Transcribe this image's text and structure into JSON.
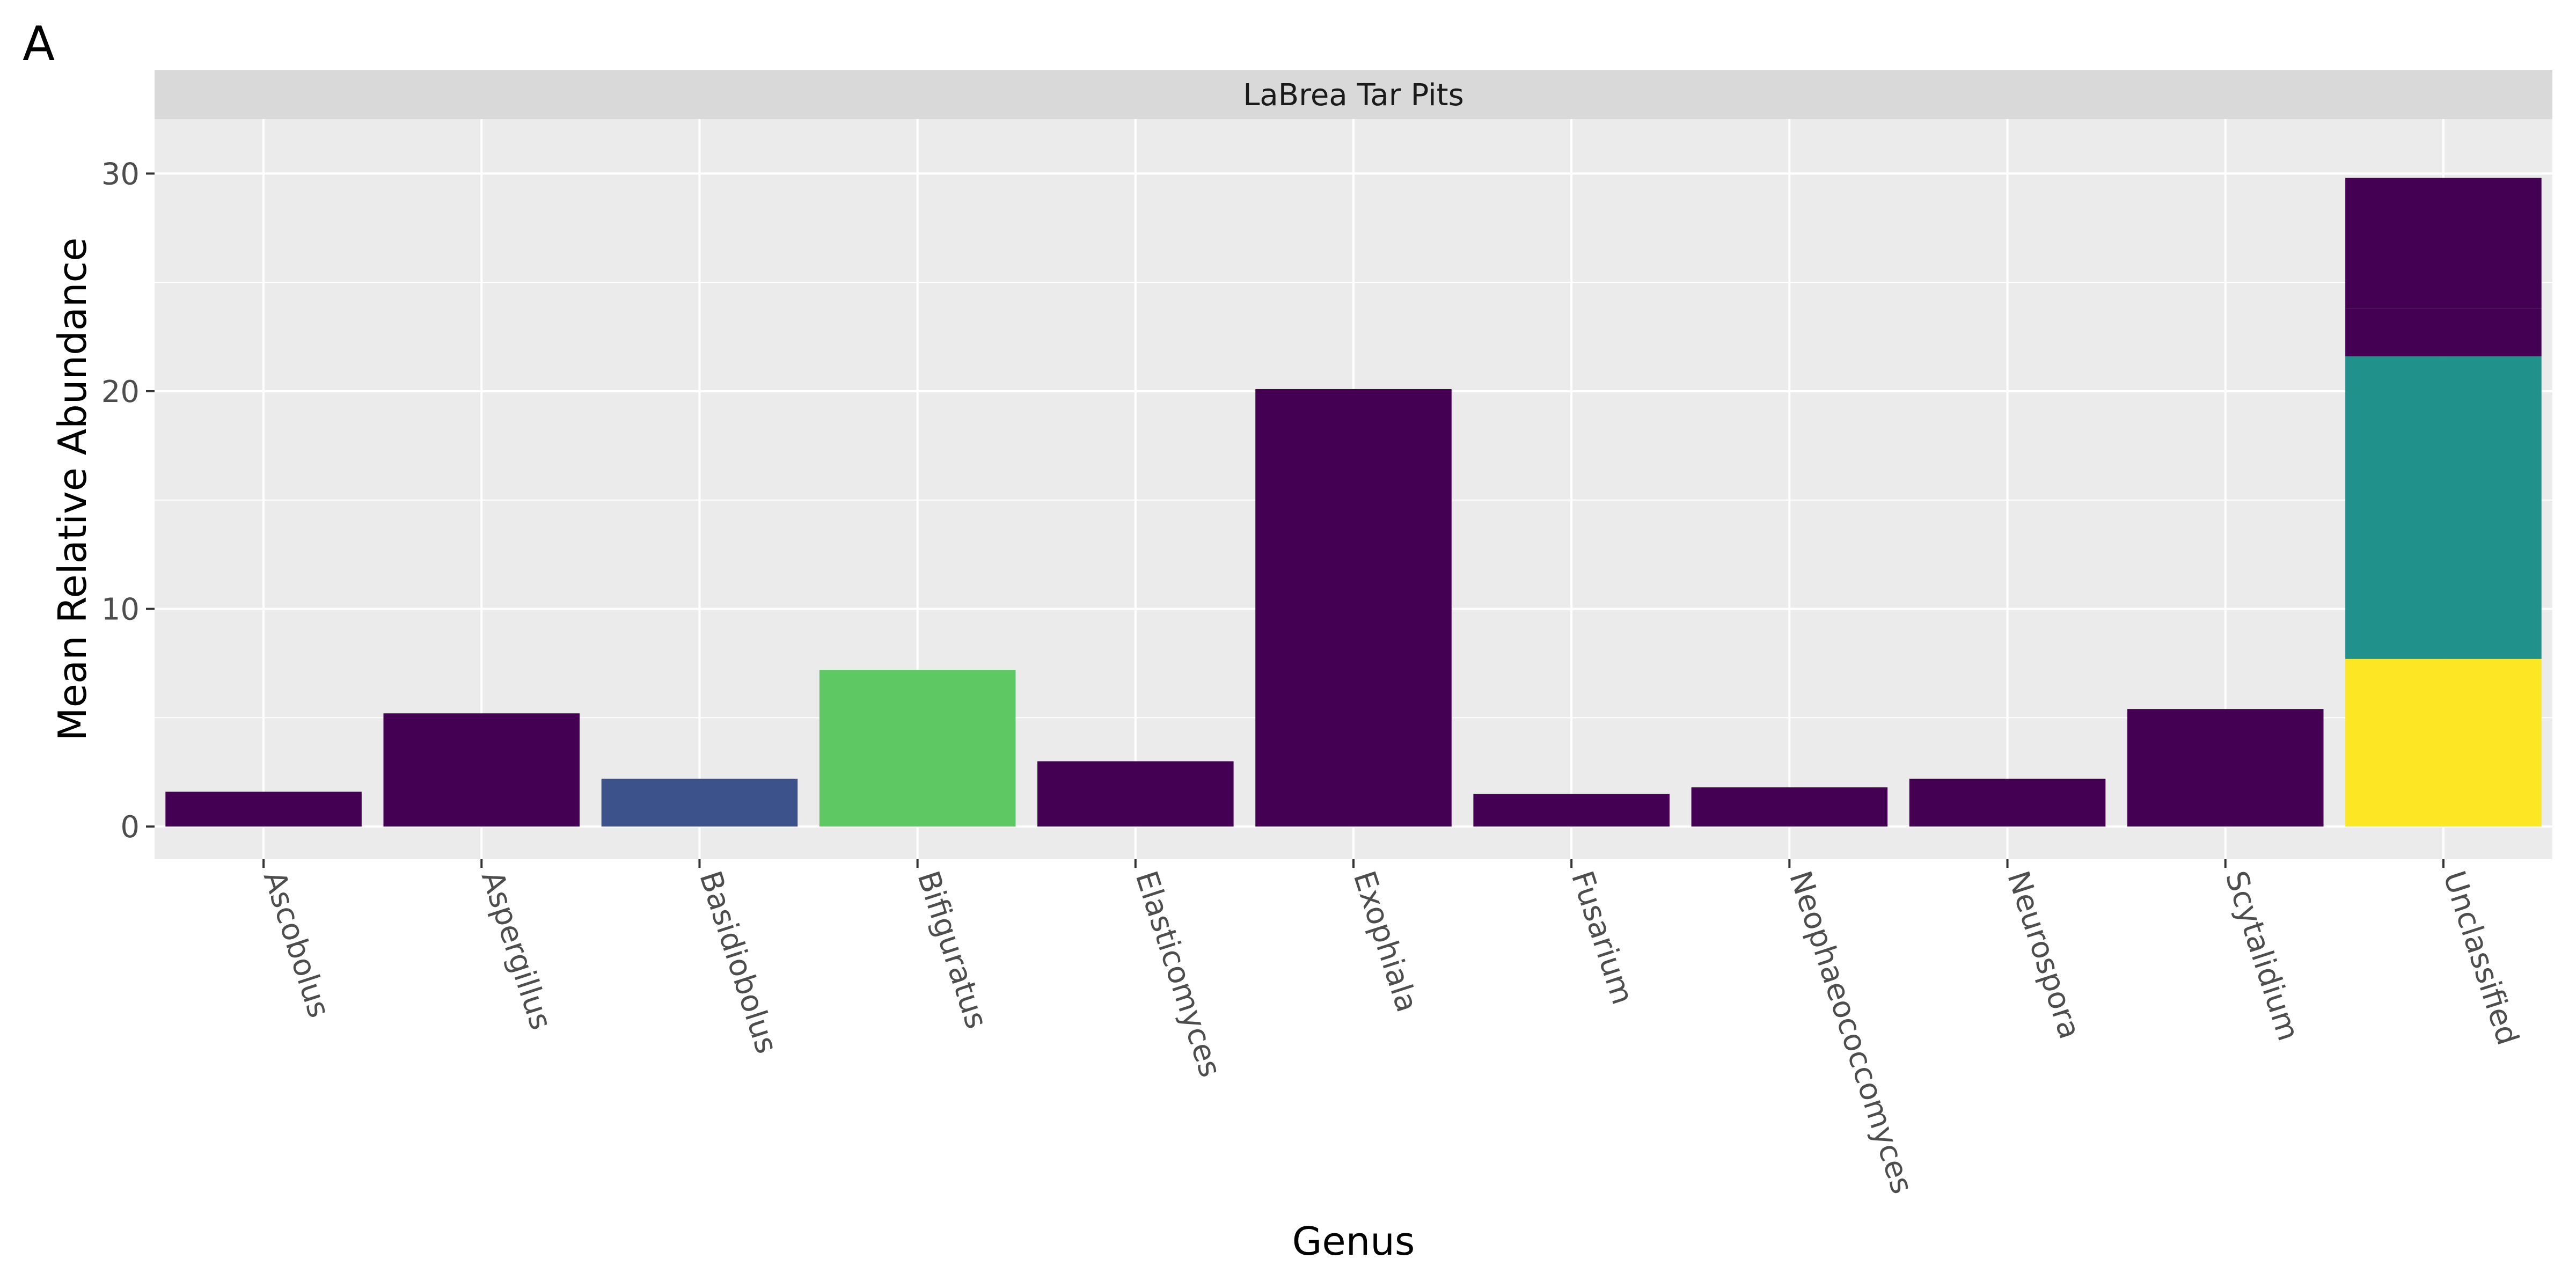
{
  "panel_label": "A",
  "chart_data": {
    "type": "bar",
    "stacked": true,
    "facet_title": "LaBrea Tar Pits",
    "title": "",
    "xlabel": "Genus",
    "ylabel": "Mean Relative Abundance",
    "ylim": [
      -1.5,
      32.5
    ],
    "yticks": [
      0,
      10,
      20,
      30
    ],
    "grid": true,
    "categories": [
      "Ascobolus",
      "Aspergillus",
      "Basidiobolus",
      "Bifiguratus",
      "Elasticomyces",
      "Exophiala",
      "Fusarium",
      "Neophaeococcomyces",
      "Neurospora",
      "Scytalidium",
      "Unclassified"
    ],
    "stacks": [
      [
        {
          "value": 1.6,
          "color": "#440154"
        }
      ],
      [
        {
          "value": 5.2,
          "color": "#440154"
        }
      ],
      [
        {
          "value": 2.2,
          "color": "#3b528b"
        }
      ],
      [
        {
          "value": 7.2,
          "color": "#5ec962"
        }
      ],
      [
        {
          "value": 3.0,
          "color": "#440154"
        }
      ],
      [
        {
          "value": 20.1,
          "color": "#440154"
        }
      ],
      [
        {
          "value": 1.5,
          "color": "#440154"
        }
      ],
      [
        {
          "value": 1.8,
          "color": "#440154"
        }
      ],
      [
        {
          "value": 2.2,
          "color": "#440154"
        }
      ],
      [
        {
          "value": 5.4,
          "color": "#440154"
        }
      ],
      [
        {
          "value": 7.7,
          "color": "#fde725"
        },
        {
          "value": 13.9,
          "color": "#21918c"
        },
        {
          "value": 2.2,
          "color": "#440154"
        },
        {
          "value": 6.0,
          "color": "#440154"
        }
      ]
    ],
    "colors": {
      "panel_bg": "#ebebeb",
      "strip_bg": "#d9d9d9",
      "grid": "#ffffff",
      "tick_text": "#4d4d4d",
      "axis_title": "#000000"
    }
  }
}
